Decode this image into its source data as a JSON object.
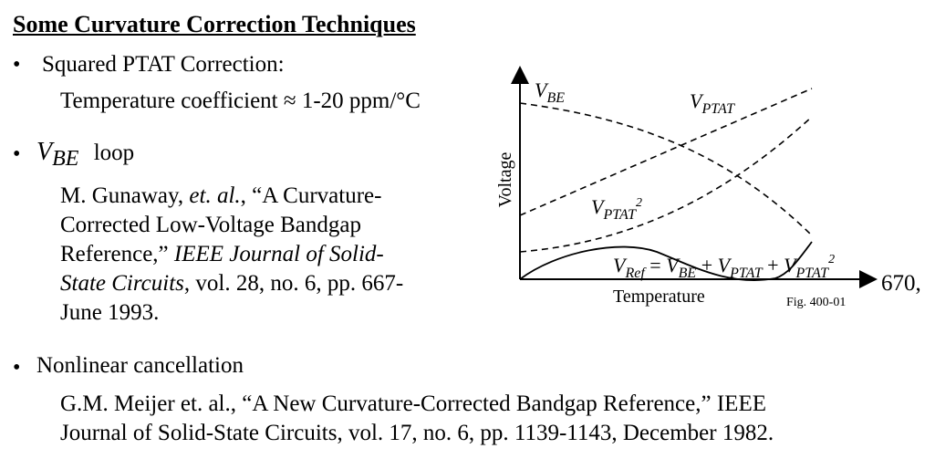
{
  "title": "Some Curvature Correction Techniques",
  "bullet_symbol": "•",
  "items": [
    {
      "label": "Squared PTAT Correction:",
      "detail": "Temperature coefficient ≈ 1-20 ppm/°C"
    },
    {
      "label_main": "V",
      "label_sub": "BE",
      "label_tail": "loop",
      "ref_author": "M. Gunaway, ",
      "ref_etal": "et. al.",
      "ref_title_1": ", “A Curvature-",
      "ref_title_2": "Corrected Low-Voltage Bandgap",
      "ref_title_3": "Reference,” ",
      "ref_journal_1": "IEEE Journal of Solid-",
      "ref_journal_2": "State Circuits",
      "ref_vol": ", vol. 28, no. 6, pp. 667-",
      "ref_pages_end": "670,",
      "ref_date": "June 1993."
    },
    {
      "label": "Nonlinear cancellation",
      "ref_line_1": "G.M. Meijer et. al.,  “A New Curvature-Corrected Bandgap Reference,” IEEE",
      "ref_line_2": "Journal of Solid-State Circuits, vol. 17, no. 6, pp. 1139-1143, December 1982."
    }
  ],
  "figure": {
    "y_label": "Voltage",
    "x_label": "Temperature",
    "fig_id": "Fig. 400-01",
    "curve_labels": {
      "vbe": {
        "main": "V",
        "sub": "BE"
      },
      "vptat": {
        "main": "V",
        "sub": "PTAT"
      },
      "vptat2": {
        "main": "V",
        "sub": "PTAT",
        "sup": "2"
      },
      "vref": {
        "v1": "V",
        "s1": "Ref",
        "eq": " = ",
        "v2": "V",
        "s2": "BE",
        "plus1": " + ",
        "v3": "V",
        "s3": "PTAT",
        "plus2": " + ",
        "v4": "V",
        "s4": "PTAT",
        "sup4": "2"
      }
    }
  }
}
